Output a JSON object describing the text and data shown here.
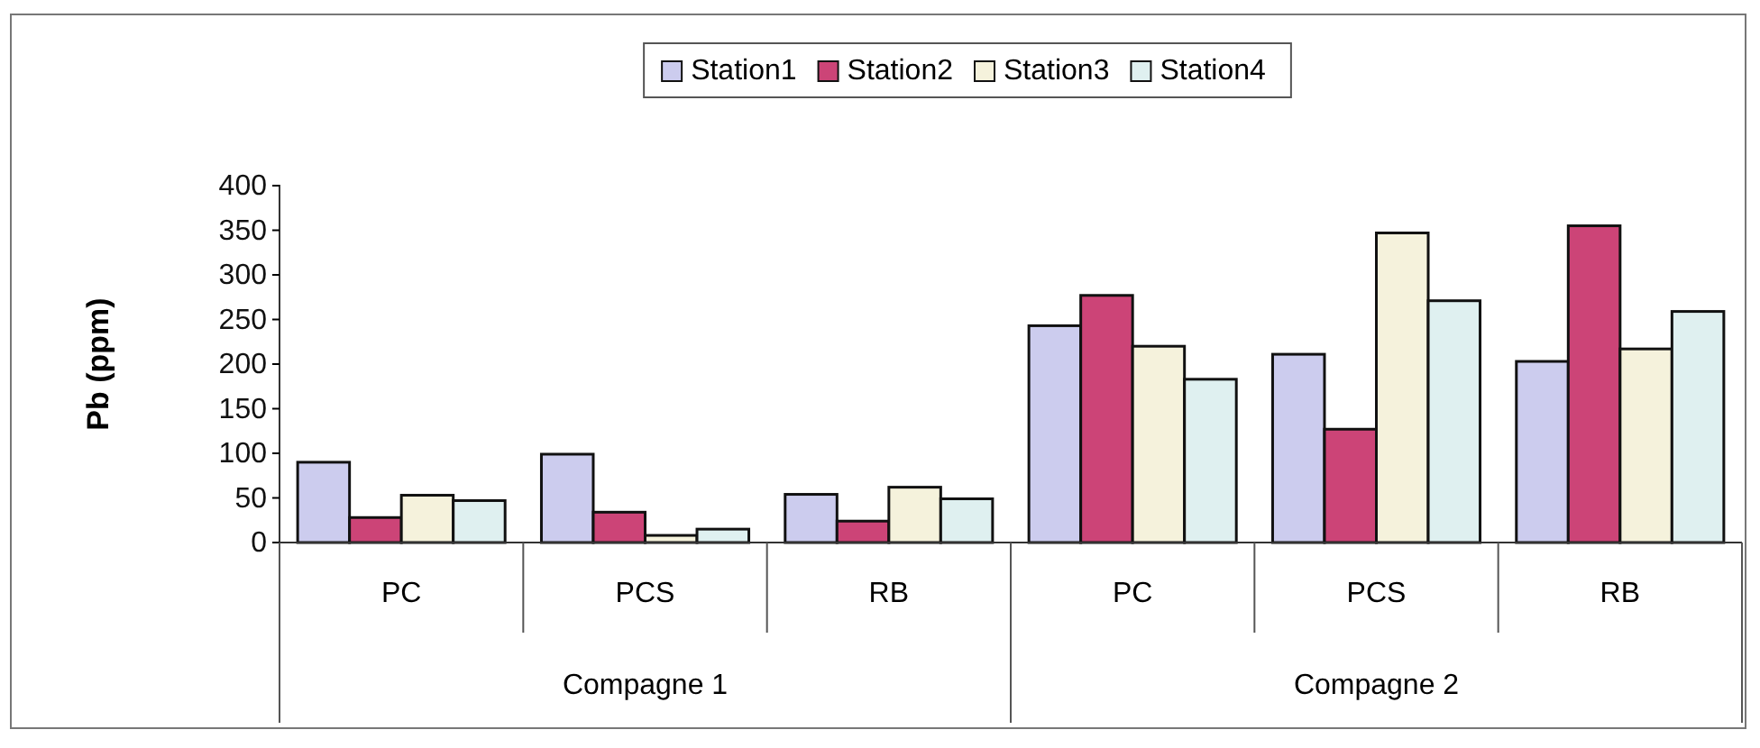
{
  "chart_data": {
    "type": "bar",
    "ylabel": "Pb (ppm)",
    "categories": [
      "PC",
      "PCS",
      "RB",
      "PC",
      "PCS",
      "RB"
    ],
    "annotations": [
      "Compagne 1",
      "Compagne 2"
    ],
    "series": [
      {
        "name": "Station1",
        "color": "#ccccee",
        "values": [
          90,
          99,
          54,
          243,
          211,
          203
        ]
      },
      {
        "name": "Station2",
        "color": "#cc4477",
        "values": [
          28,
          34,
          24,
          277,
          127,
          355
        ]
      },
      {
        "name": "Station3",
        "color": "#f5f2dc",
        "values": [
          53,
          8,
          62,
          220,
          347,
          217
        ]
      },
      {
        "name": "Station4",
        "color": "#dff0f0",
        "values": [
          47,
          15,
          49,
          183,
          271,
          259
        ]
      }
    ],
    "ylim": [
      0,
      400
    ],
    "yticks": [
      0,
      50,
      100,
      150,
      200,
      250,
      300,
      350,
      400
    ],
    "grid": false,
    "legend": "top"
  }
}
